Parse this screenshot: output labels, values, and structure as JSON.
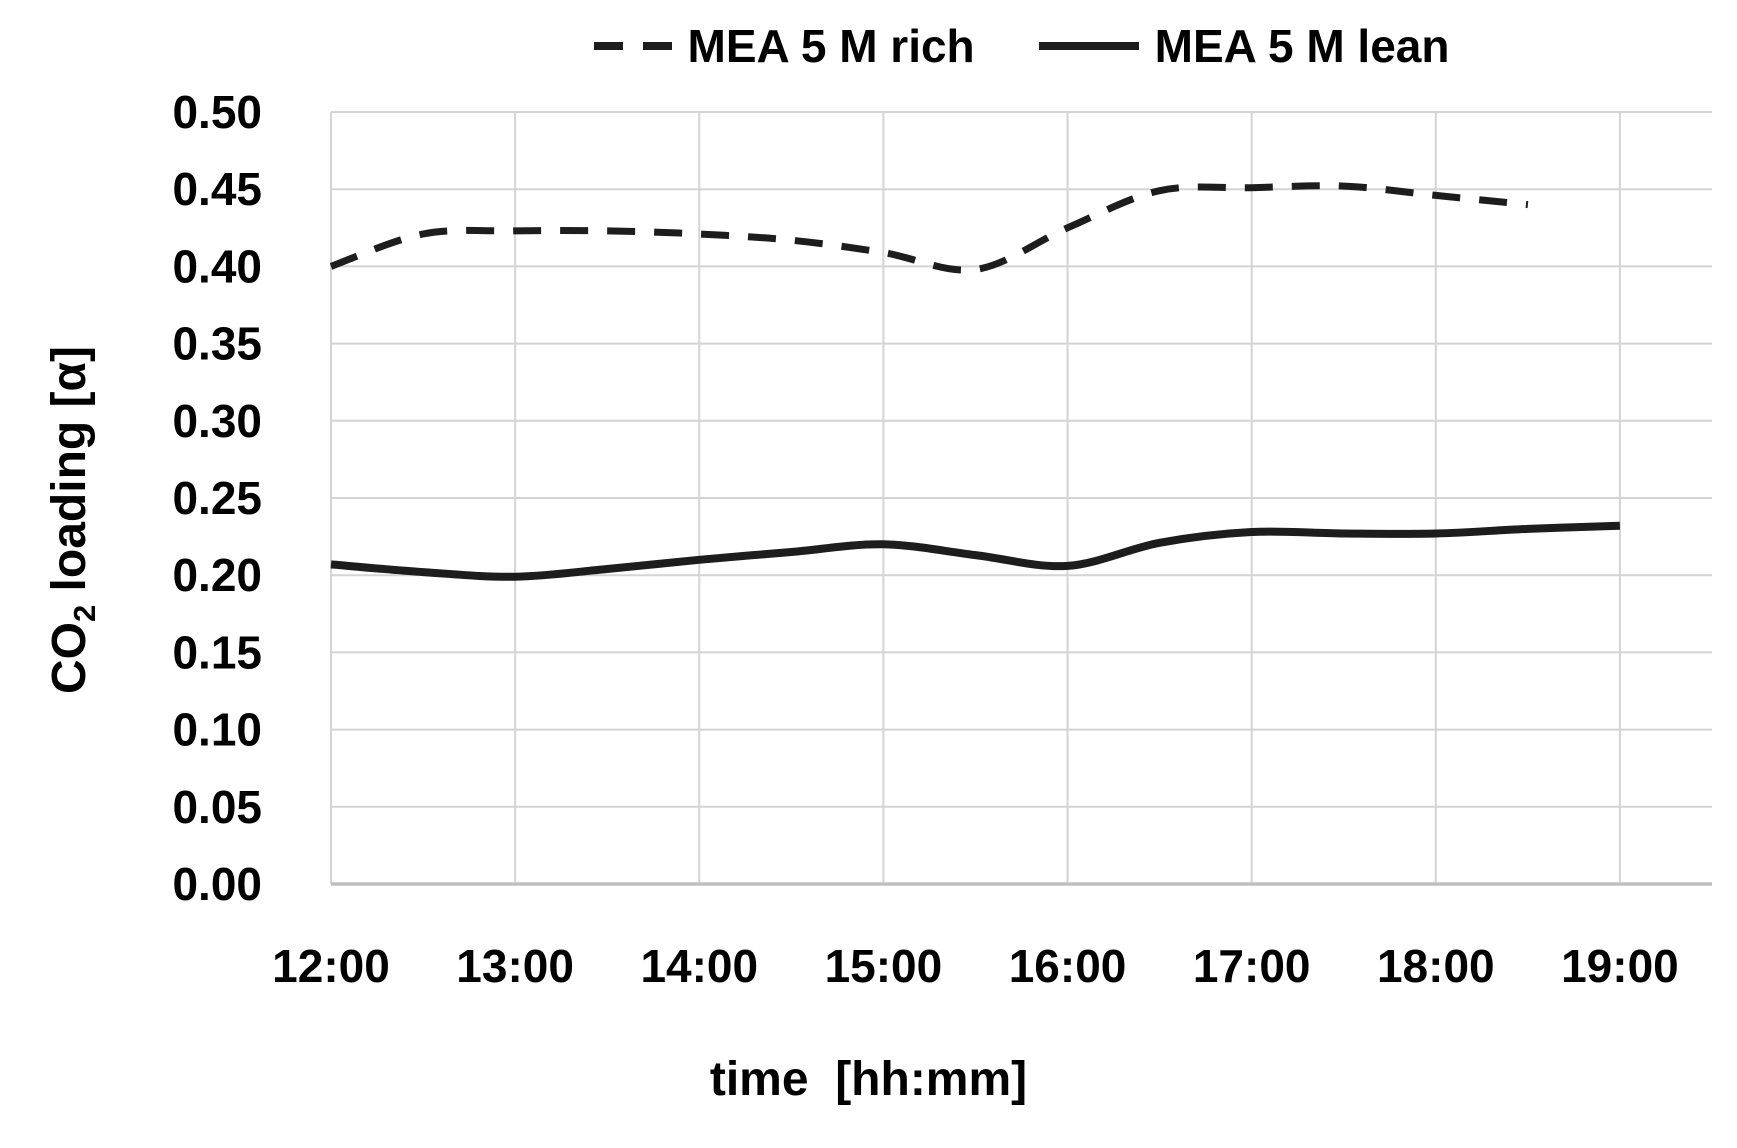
{
  "chart_data": {
    "type": "line",
    "title": "",
    "xlabel": "time  [hh:mm]",
    "ylabel": {
      "pre": "CO",
      "sub": "2",
      "post": " loading [α]"
    },
    "x_ticks": [
      "12:00",
      "13:00",
      "14:00",
      "15:00",
      "16:00",
      "17:00",
      "18:00",
      "19:00"
    ],
    "y_ticks": [
      "0.00",
      "0.05",
      "0.10",
      "0.15",
      "0.20",
      "0.25",
      "0.30",
      "0.35",
      "0.40",
      "0.45",
      "0.50"
    ],
    "xlim": [
      "12:00",
      "19:30"
    ],
    "ylim": [
      0.0,
      0.5
    ],
    "grid": true,
    "legend_position": "top-center",
    "series": [
      {
        "name": "MEA 5 M rich",
        "line_style": "dashed",
        "x": [
          "12:00",
          "12:30",
          "13:00",
          "13:30",
          "14:00",
          "14:30",
          "15:00",
          "15:30",
          "16:00",
          "16:30",
          "17:00",
          "17:30",
          "18:00",
          "18:30"
        ],
        "values": [
          0.4,
          0.421,
          0.423,
          0.423,
          0.421,
          0.417,
          0.409,
          0.398,
          0.425,
          0.449,
          0.451,
          0.452,
          0.446,
          0.44
        ]
      },
      {
        "name": "MEA 5 M lean",
        "line_style": "solid",
        "x": [
          "12:00",
          "12:30",
          "13:00",
          "13:30",
          "14:00",
          "14:30",
          "15:00",
          "15:30",
          "16:00",
          "16:30",
          "17:00",
          "17:30",
          "18:00",
          "18:30",
          "19:00"
        ],
        "values": [
          0.207,
          0.202,
          0.199,
          0.204,
          0.21,
          0.215,
          0.22,
          0.213,
          0.206,
          0.221,
          0.228,
          0.227,
          0.227,
          0.23,
          0.232
        ]
      }
    ],
    "colors": {
      "line": "#1d1d1d",
      "grid": "#d4d4d4",
      "axis": "#bfbfbf",
      "text": "#000000",
      "background": "#ffffff"
    }
  }
}
